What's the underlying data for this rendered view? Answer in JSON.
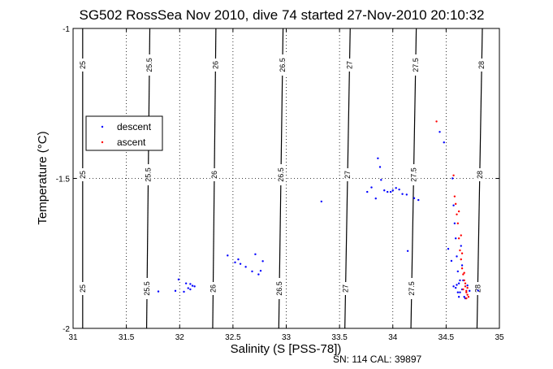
{
  "chart_data": {
    "type": "scatter",
    "title": "SG502 RossSea Nov 2010, dive 74 started 27-Nov-2010 20:10:32",
    "xlabel": "Salinity (S [PSS-78])",
    "ylabel": "Temperature (°C)",
    "xlim": [
      31,
      35
    ],
    "ylim": [
      -2,
      -1
    ],
    "x_ticks": [
      "31",
      "31.5",
      "32",
      "32.5",
      "33",
      "33.5",
      "34",
      "34.5",
      "35"
    ],
    "y_ticks": [
      "-2",
      "-1.5",
      "-1"
    ],
    "grid": "dotted",
    "legend": {
      "placement": "upper-left",
      "entries": [
        "descent",
        "ascent"
      ]
    },
    "footer": "SN: 114  CAL: 39897",
    "contours": [
      {
        "label": "25",
        "x_bottom": 31.09,
        "x_top": 31.09
      },
      {
        "label": "25.5",
        "x_bottom": 31.69,
        "x_top": 31.72
      },
      {
        "label": "26",
        "x_bottom": 32.31,
        "x_top": 32.34
      },
      {
        "label": "26.5",
        "x_bottom": 32.93,
        "x_top": 32.97
      },
      {
        "label": "27",
        "x_bottom": 33.55,
        "x_top": 33.6
      },
      {
        "label": "27.5",
        "x_bottom": 34.17,
        "x_top": 34.22
      },
      {
        "label": "28",
        "x_bottom": 34.79,
        "x_top": 34.84
      }
    ],
    "series": [
      {
        "name": "descent",
        "color": "#0000ff",
        "points": [
          [
            31.8,
            -1.877
          ],
          [
            31.96,
            -1.875
          ],
          [
            31.99,
            -1.837
          ],
          [
            32.04,
            -1.878
          ],
          [
            32.06,
            -1.85
          ],
          [
            32.08,
            -1.866
          ],
          [
            32.1,
            -1.87
          ],
          [
            32.12,
            -1.858
          ],
          [
            32.14,
            -1.86
          ],
          [
            32.1,
            -1.852
          ],
          [
            32.45,
            -1.757
          ],
          [
            32.52,
            -1.78
          ],
          [
            32.55,
            -1.77
          ],
          [
            32.57,
            -1.785
          ],
          [
            32.62,
            -1.795
          ],
          [
            32.68,
            -1.81
          ],
          [
            32.71,
            -1.753
          ],
          [
            32.74,
            -1.82
          ],
          [
            32.76,
            -1.808
          ],
          [
            32.78,
            -1.776
          ],
          [
            33.33,
            -1.577
          ],
          [
            33.76,
            -1.545
          ],
          [
            33.8,
            -1.53
          ],
          [
            33.84,
            -1.567
          ],
          [
            33.86,
            -1.433
          ],
          [
            33.88,
            -1.462
          ],
          [
            33.89,
            -1.505
          ],
          [
            33.92,
            -1.54
          ],
          [
            33.95,
            -1.545
          ],
          [
            33.98,
            -1.545
          ],
          [
            34.0,
            -1.54
          ],
          [
            34.03,
            -1.532
          ],
          [
            34.06,
            -1.537
          ],
          [
            34.09,
            -1.552
          ],
          [
            34.13,
            -1.554
          ],
          [
            34.2,
            -1.566
          ],
          [
            34.24,
            -1.572
          ],
          [
            34.14,
            -1.742
          ],
          [
            34.44,
            -1.345
          ],
          [
            34.48,
            -1.38
          ],
          [
            34.52,
            -1.735
          ],
          [
            34.55,
            -1.775
          ],
          [
            34.56,
            -1.5
          ],
          [
            34.57,
            -1.59
          ],
          [
            34.58,
            -1.65
          ],
          [
            34.59,
            -1.7
          ],
          [
            34.6,
            -1.76
          ],
          [
            34.61,
            -1.81
          ],
          [
            34.62,
            -1.85
          ],
          [
            34.63,
            -1.88
          ],
          [
            34.64,
            -1.725
          ],
          [
            34.65,
            -1.79
          ],
          [
            34.66,
            -1.84
          ],
          [
            34.67,
            -1.895
          ],
          [
            34.68,
            -1.9
          ],
          [
            34.7,
            -1.857
          ],
          [
            34.72,
            -1.875
          ],
          [
            34.59,
            -1.865
          ],
          [
            34.6,
            -1.855
          ],
          [
            34.62,
            -1.895
          ],
          [
            34.8,
            -1.874
          ],
          [
            34.57,
            -1.86
          ],
          [
            34.61,
            -1.88
          ],
          [
            34.63,
            -1.84
          ],
          [
            34.65,
            -1.87
          ]
        ]
      },
      {
        "name": "ascent",
        "color": "#ff0000",
        "points": [
          [
            34.41,
            -1.31
          ],
          [
            34.57,
            -1.49
          ],
          [
            34.58,
            -1.56
          ],
          [
            34.59,
            -1.585
          ],
          [
            34.6,
            -1.62
          ],
          [
            34.61,
            -1.65
          ],
          [
            34.62,
            -1.7
          ],
          [
            34.63,
            -1.74
          ],
          [
            34.64,
            -1.77
          ],
          [
            34.65,
            -1.8
          ],
          [
            34.66,
            -1.82
          ],
          [
            34.67,
            -1.84
          ],
          [
            34.68,
            -1.86
          ],
          [
            34.69,
            -1.875
          ],
          [
            34.7,
            -1.888
          ],
          [
            34.71,
            -1.895
          ],
          [
            34.66,
            -1.87
          ],
          [
            34.68,
            -1.85
          ],
          [
            34.69,
            -1.88
          ],
          [
            34.7,
            -1.865
          ],
          [
            34.62,
            -1.61
          ],
          [
            34.64,
            -1.69
          ],
          [
            34.65,
            -1.75
          ],
          [
            34.67,
            -1.815
          ],
          [
            34.69,
            -1.9
          ]
        ]
      }
    ]
  }
}
